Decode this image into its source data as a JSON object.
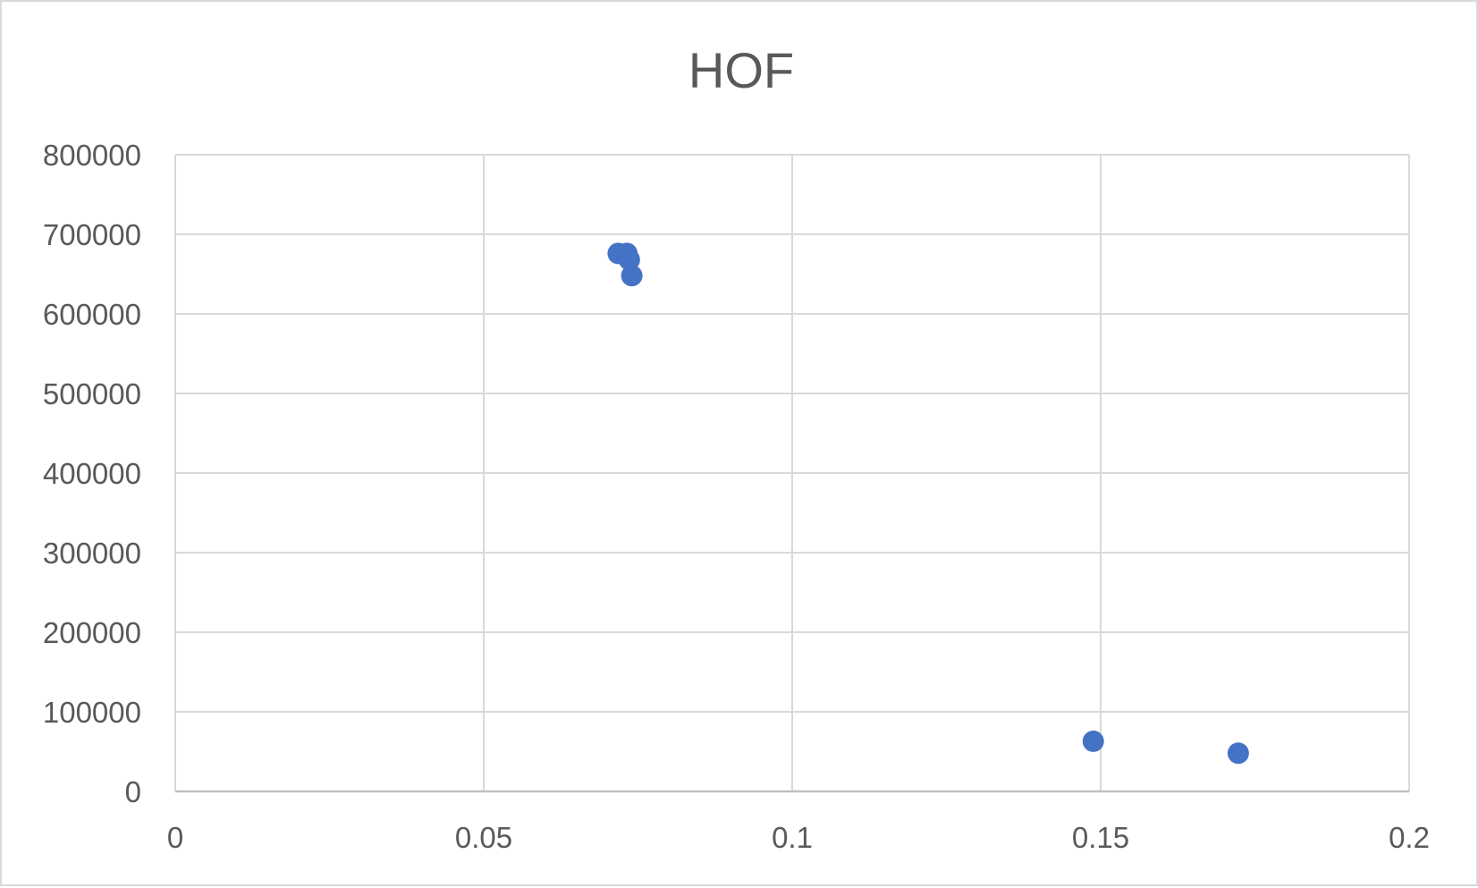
{
  "chart_data": {
    "type": "scatter",
    "title": "HOF",
    "xlabel": "",
    "ylabel": "",
    "xlim": [
      0,
      0.2
    ],
    "ylim": [
      0,
      800000
    ],
    "x_ticks": [
      "0",
      "0.05",
      "0.1",
      "0.15",
      "0.2"
    ],
    "y_ticks": [
      "0",
      "100000",
      "200000",
      "300000",
      "400000",
      "500000",
      "600000",
      "700000",
      "800000"
    ],
    "grid": true,
    "legend": "none",
    "marker_color": "#4472c4",
    "series": [
      {
        "points": [
          {
            "x": 0.0718,
            "y": 676000
          },
          {
            "x": 0.0732,
            "y": 676000
          },
          {
            "x": 0.0736,
            "y": 668000
          },
          {
            "x": 0.074,
            "y": 648000
          },
          {
            "x": 0.1488,
            "y": 63000
          },
          {
            "x": 0.1723,
            "y": 48000
          }
        ]
      }
    ]
  }
}
